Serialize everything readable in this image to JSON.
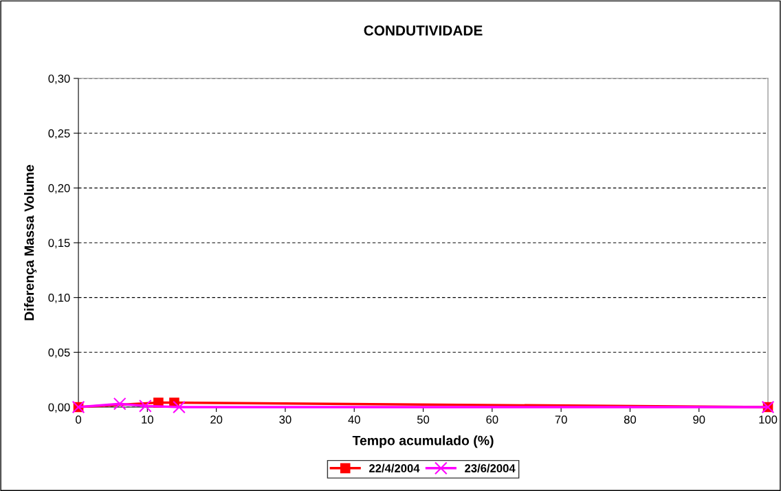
{
  "chart_data": {
    "type": "line",
    "title": "CONDUTIVIDADE",
    "xlabel": "Tempo acumulado (%)",
    "ylabel": "Diferença Massa Volume",
    "xlim": [
      0,
      100
    ],
    "xticks": [
      0,
      10,
      20,
      30,
      40,
      50,
      60,
      70,
      80,
      90,
      100
    ],
    "ylim": [
      0,
      0.3
    ],
    "yticks": [
      {
        "value": 0,
        "label": "0,00"
      },
      {
        "value": 0.05,
        "label": "0,05"
      },
      {
        "value": 0.1,
        "label": "0,10"
      },
      {
        "value": 0.15,
        "label": "0,15"
      },
      {
        "value": 0.2,
        "label": "0,20"
      },
      {
        "value": 0.25,
        "label": "0,25"
      },
      {
        "value": 0.3,
        "label": "0,30"
      }
    ],
    "grid": "y",
    "legend": "bottom",
    "line_style": "solid",
    "series": [
      {
        "name": "22/4/2004",
        "color": "#ff0000",
        "marker": "square",
        "x": [
          0,
          11.6,
          13.9,
          100
        ],
        "values": [
          0,
          0.004,
          0.004,
          0
        ]
      },
      {
        "name": "23/6/2004",
        "color": "#ff00ff",
        "marker": "cross",
        "x": [
          0,
          6,
          9.7,
          14.6,
          100
        ],
        "values": [
          0,
          0.003,
          0.001,
          0,
          0
        ]
      }
    ]
  }
}
